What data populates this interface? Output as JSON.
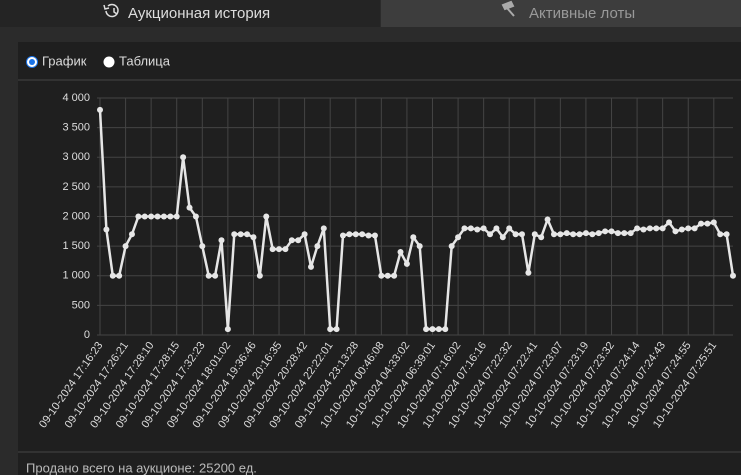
{
  "tabs": [
    "Аукционная история",
    "Активные лоты"
  ],
  "view_options": [
    "График",
    "Таблица"
  ],
  "chart_data": {
    "type": "line",
    "color": "#e6e6e6",
    "grid": true,
    "categories": [
      "09-10-2024 17:16:23",
      null,
      null,
      null,
      "09-10-2024 17:26:21",
      null,
      null,
      null,
      "09-10-2024 17:28:10",
      null,
      null,
      null,
      "09-10-2024 17:28:15",
      null,
      null,
      null,
      "09-10-2024 17:32:23",
      null,
      null,
      null,
      "09-10-2024 18:01:02",
      null,
      null,
      null,
      "09-10-2024 19:36:46",
      null,
      null,
      null,
      "09-10-2024 20:16:35",
      null,
      null,
      null,
      "09-10-2024 20:28:42",
      null,
      null,
      null,
      "09-10-2024 22:22:01",
      null,
      null,
      null,
      "09-10-2024 23:13:28",
      null,
      null,
      null,
      "10-10-2024 00:46:08",
      null,
      null,
      null,
      "10-10-2024 04:33:02",
      null,
      null,
      null,
      "10-10-2024 06:39:01",
      null,
      null,
      null,
      "10-10-2024 07:16:02",
      null,
      null,
      null,
      "10-10-2024 07:16:16",
      null,
      null,
      null,
      "10-10-2024 07:22:32",
      null,
      null,
      null,
      "10-10-2024 07:22:41",
      null,
      null,
      null,
      "10-10-2024 07:23:07",
      null,
      null,
      null,
      "10-10-2024 07:23:19",
      null,
      null,
      null,
      "10-10-2024 07:23:32",
      null,
      null,
      null,
      "10-10-2024 07:24:14",
      null,
      null,
      null,
      "10-10-2024 07:24:43",
      null,
      null,
      null,
      "10-10-2024 07:24:55",
      null,
      null,
      null,
      "10-10-2024 07:25:51",
      null,
      null,
      null
    ],
    "values": [
      3800,
      1780,
      1000,
      1000,
      1500,
      1700,
      2000,
      2000,
      2000,
      2000,
      2000,
      2000,
      2000,
      3000,
      2150,
      2000,
      1500,
      1000,
      1000,
      1600,
      100,
      1700,
      1700,
      1700,
      1650,
      1000,
      2000,
      1450,
      1450,
      1450,
      1600,
      1600,
      1700,
      1150,
      1500,
      1800,
      100,
      100,
      1680,
      1700,
      1700,
      1700,
      1680,
      1680,
      1000,
      1000,
      1000,
      1400,
      1200,
      1650,
      1500,
      100,
      100,
      100,
      100,
      1500,
      1650,
      1800,
      1800,
      1780,
      1800,
      1700,
      1800,
      1650,
      1800,
      1700,
      1700,
      1050,
      1700,
      1650,
      1950,
      1700,
      1700,
      1720,
      1700,
      1700,
      1720,
      1700,
      1720,
      1750,
      1750,
      1720,
      1720,
      1720,
      1800,
      1780,
      1800,
      1800,
      1800,
      1900,
      1750,
      1780,
      1800,
      1800,
      1880,
      1880,
      1900,
      1700,
      1700,
      1000
    ],
    "ylim": [
      0,
      4000
    ],
    "yticks": [
      0,
      {
        "value": 500,
        "label": "500"
      },
      {
        "value": 1000,
        "label": "1 000"
      },
      {
        "value": 1500,
        "label": "1 500"
      },
      {
        "value": 2000,
        "label": "2 000"
      },
      {
        "value": 2500,
        "label": "2 500"
      },
      {
        "value": 3000,
        "label": "3 000"
      },
      {
        "value": 3500,
        "label": "3 500"
      },
      {
        "value": 4000,
        "label": "4 000"
      }
    ]
  },
  "footer": "Продано всего на аукционе: 25200 ед."
}
